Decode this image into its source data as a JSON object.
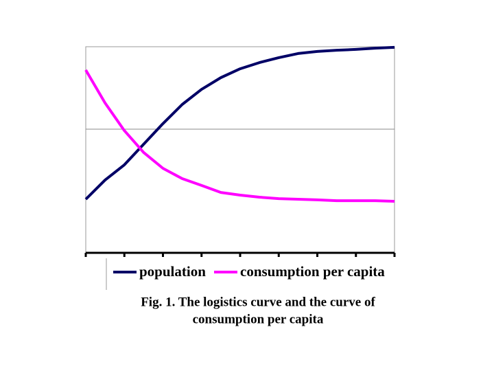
{
  "chart_data": {
    "type": "line",
    "x": [
      0,
      0.5,
      1,
      1.5,
      2,
      2.5,
      3,
      3.5,
      4,
      4.5,
      5,
      5.5,
      6,
      6.5,
      7,
      7.5,
      8
    ],
    "series": [
      {
        "name": "population",
        "color": "#000066",
        "values": [
          26,
          35.3,
          42.7,
          52.7,
          62.7,
          72,
          79.3,
          85,
          89.3,
          92.3,
          94.7,
          96.7,
          97.7,
          98.3,
          98.7,
          99.3,
          99.7
        ]
      },
      {
        "name": "consumption per capita",
        "color": "#ff00ff",
        "values": [
          88.7,
          72.7,
          59.3,
          48.7,
          41,
          36,
          32.7,
          29.3,
          28,
          27,
          26.3,
          26,
          25.7,
          25.3,
          25.3,
          25.3,
          25
        ]
      }
    ],
    "xlim": [
      0,
      8
    ],
    "xticks": [
      0,
      1,
      2,
      3,
      4,
      5,
      6,
      7,
      8
    ],
    "ylim": [
      0,
      100
    ],
    "yticks": [
      60
    ],
    "grid": true,
    "caption": [
      "Fig. 1. The logistics curve and the curve of",
      "consumption per capita"
    ]
  }
}
